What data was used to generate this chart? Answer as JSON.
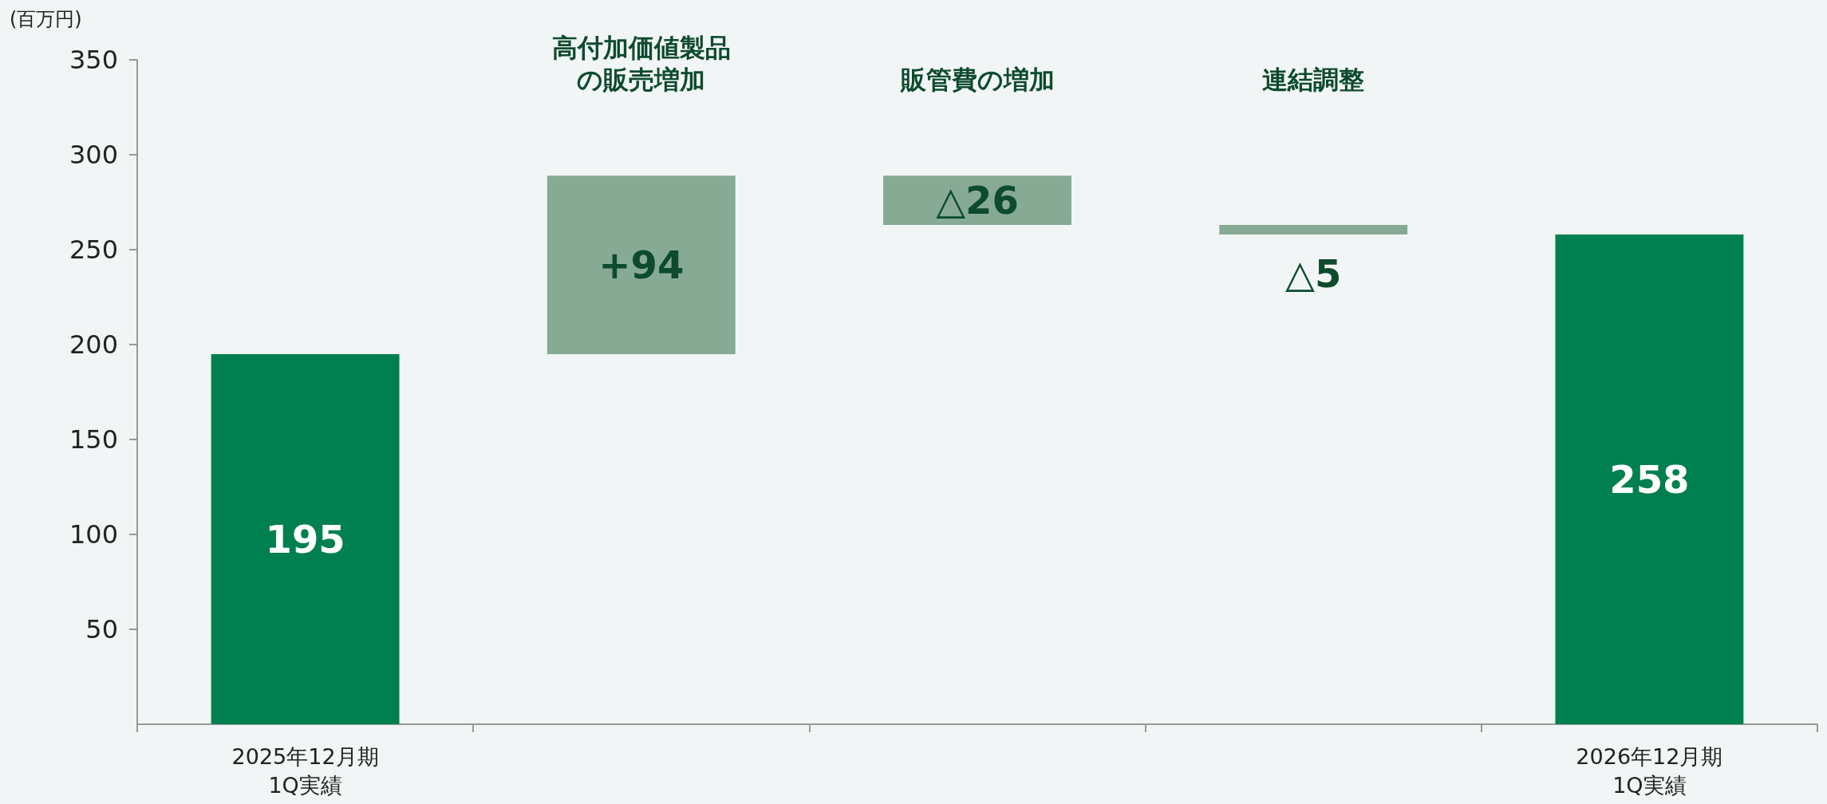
{
  "chart_data": {
    "type": "bar",
    "ylabel": "(百万円)",
    "categories": [
      "2025年12月期1Q実績",
      "高付加価値製品の販売増加",
      "販管費の増加",
      "連結調整",
      "2026年12月期1Q実績"
    ],
    "values": [
      195,
      94,
      -26,
      -5,
      258
    ],
    "base": [
      null,
      195,
      289,
      263,
      null
    ],
    "colors": [
      "#008050",
      "#86aa94",
      "#86aa94",
      "#86aa94",
      "#008050"
    ],
    "value_labels": [
      "195",
      "+94",
      "△26",
      "△5",
      "258"
    ],
    "ylim": [
      0,
      350
    ],
    "yticks": [
      50,
      100,
      150,
      200,
      250,
      300,
      350
    ],
    "grid": false
  }
}
